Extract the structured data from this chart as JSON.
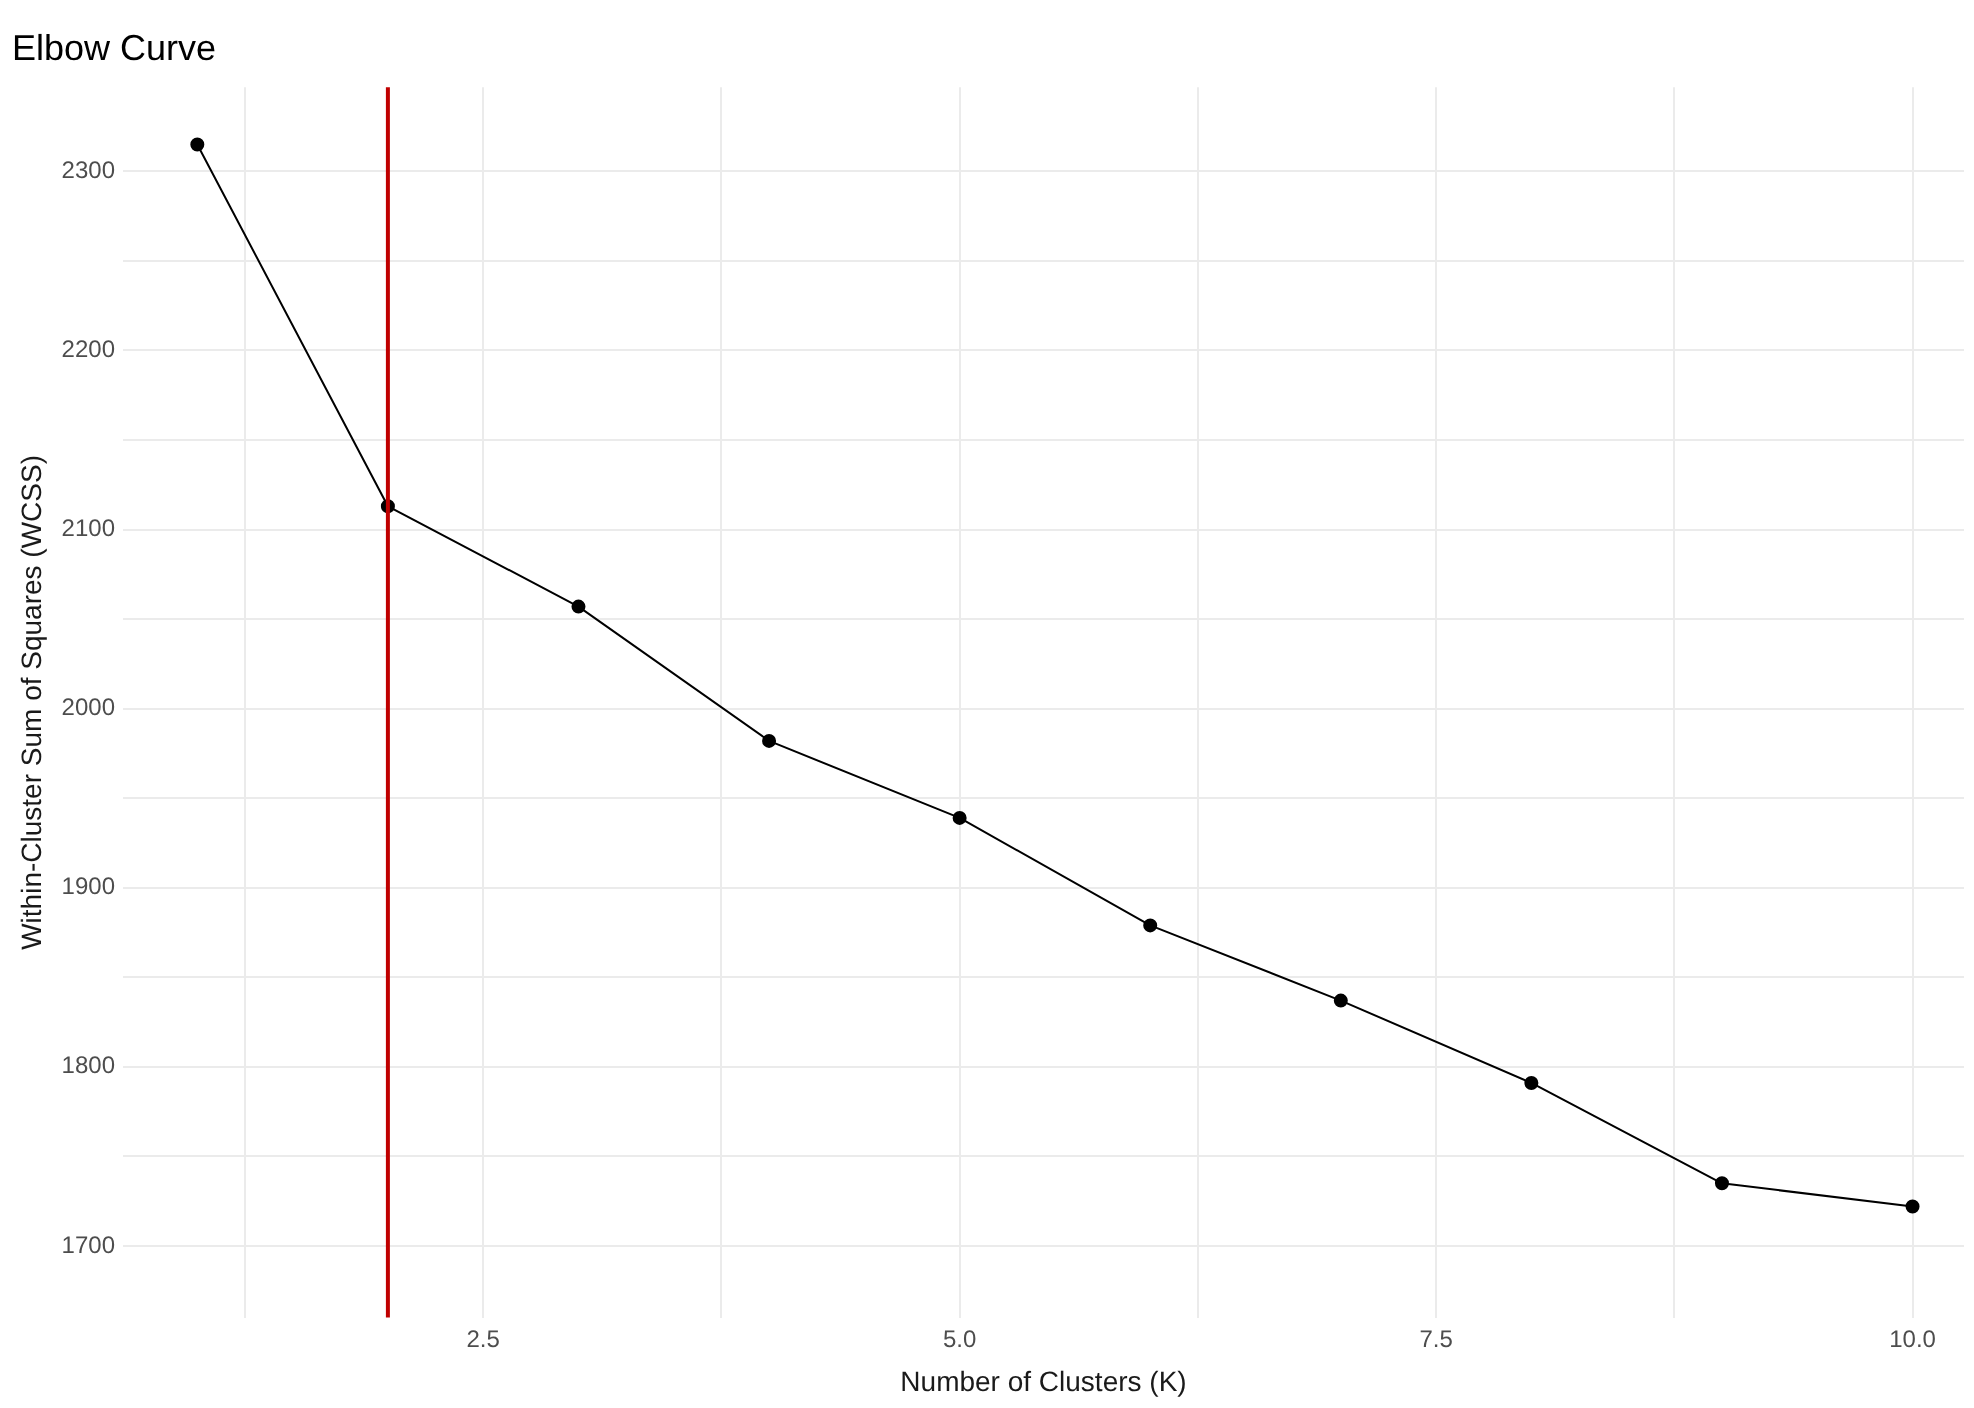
{
  "chart_data": {
    "type": "line",
    "title": "Elbow Curve",
    "xlabel": "Number of Clusters (K)",
    "ylabel": "Within-Cluster Sum of Squares (WCSS)",
    "x": [
      1,
      2,
      3,
      4,
      5,
      6,
      7,
      8,
      9,
      10
    ],
    "series": [
      {
        "color": "#000000",
        "values": [
          2315,
          2113,
          2057,
          1982,
          1939,
          1879,
          1837,
          1791,
          1735,
          1722
        ]
      }
    ],
    "xlim": [
      0.61,
      10.27
    ],
    "ylim": [
      1660,
      2347
    ],
    "xticks": [
      {
        "value": 1.25,
        "label": null
      },
      {
        "value": 2.5,
        "label": "2.5"
      },
      {
        "value": 3.75,
        "label": null
      },
      {
        "value": 5,
        "label": "5.0"
      },
      {
        "value": 6.25,
        "label": null
      },
      {
        "value": 7.5,
        "label": "7.5"
      },
      {
        "value": 8.75,
        "label": null
      },
      {
        "value": 10,
        "label": "10.0"
      }
    ],
    "yticks": [
      1700,
      {
        "value": 1750,
        "label": null
      },
      1800,
      {
        "value": 1850,
        "label": null
      },
      1900,
      {
        "value": 1950,
        "label": null
      },
      2000,
      {
        "value": 2050,
        "label": null
      },
      2100,
      {
        "value": 2150,
        "label": null
      },
      2200,
      {
        "value": 2250,
        "label": null
      },
      2300
    ],
    "ref_lines": [
      {
        "axis": "x",
        "value": 2,
        "color": "#c00000"
      }
    ],
    "grid": true,
    "legend": false,
    "marker": "circle",
    "line_style": "solid"
  }
}
